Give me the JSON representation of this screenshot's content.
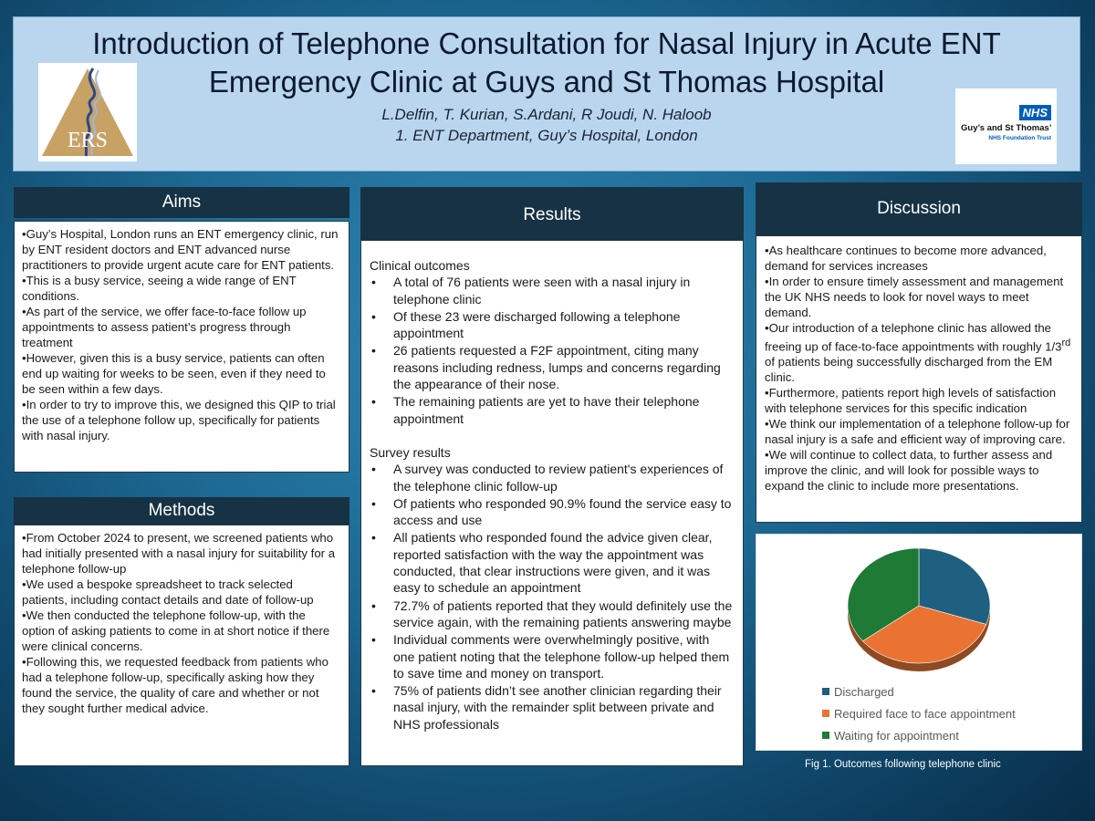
{
  "header": {
    "title_line1": "Introduction of Telephone Consultation for Nasal Injury in Acute ENT",
    "title_line2": "Emergency Clinic at Guys and St Thomas Hospital",
    "authors": "L.Delfin, T. Kurian, S.Ardani, R Joudi, N. Haloob",
    "affiliation": "1. ENT Department, Guy’s Hospital, London",
    "logo_left_text": "ERS",
    "logo_right_badge": "NHS",
    "logo_right_name": "Guy’s and St Thomas’",
    "logo_right_trust": "NHS Foundation Trust"
  },
  "aims": {
    "heading": "Aims",
    "items": [
      "•Guy’s Hospital, London runs an ENT emergency clinic, run by ENT resident doctors and ENT advanced nurse practitioners to provide urgent acute care for ENT patients.",
      "•This is a busy service, seeing a wide range of ENT conditions.",
      "•As part of the service, we offer face-to-face follow up appointments to assess patient’s progress through treatment",
      "•However, given this is a busy service, patients can often end up waiting for weeks to be seen, even if they need to be seen within a few days.",
      "•In order to try to improve this, we designed this QIP to trial the use of a telephone follow up, specifically for patients with nasal injury."
    ]
  },
  "methods": {
    "heading": "Methods",
    "items": [
      "•From October 2024 to present, we screened patients who had initially presented with a nasal injury for suitability for a telephone follow-up",
      "•We used a bespoke spreadsheet to track selected patients, including contact details and date of follow-up",
      "•We then conducted the telephone follow-up, with the option of asking patients to come in at short notice if there were clinical concerns.",
      "•Following this, we requested feedback from patients who had a telephone follow-up, specifically asking how they found the service, the quality of care and whether or not they sought further medical advice."
    ]
  },
  "results": {
    "heading": "Results",
    "clinical_heading": "Clinical outcomes",
    "clinical_items": [
      "A total of 76 patients were seen with a nasal injury in telephone clinic",
      "Of these 23 were discharged following a telephone appointment",
      "26 patients requested a F2F appointment, citing many reasons including redness, lumps and concerns regarding the appearance of their nose.",
      "The remaining patients are yet to have their telephone appointment"
    ],
    "survey_heading": "Survey results",
    "survey_items": [
      "A survey was conducted to review patient's experiences of the telephone clinic follow-up",
      "Of patients who responded 90.9% found the service easy to access and use",
      "All patients who responded found the advice given clear, reported satisfaction with the way the appointment was conducted, that clear instructions were given, and it was easy to schedule an appointment",
      "72.7% of patients reported that they would definitely use the service again, with the remaining patients answering maybe",
      "Individual comments were overwhelmingly positive, with one patient noting that the telephone follow-up helped them to save time and money on transport.",
      "75% of patients didn’t see another clinician regarding their nasal injury, with the remainder split between private and NHS professionals"
    ]
  },
  "discussion": {
    "heading": "Discussion",
    "items": [
      "•As healthcare continues to become more advanced, demand for services increases",
      "•In order to ensure timely assessment and management the UK NHS needs to look for novel ways to meet demand.",
      "•Our introduction of a telephone clinic has allowed the freeing up of face-to-face appointments with roughly 1/3rd of patients being successfully discharged from the EM clinic.",
      "•Furthermore, patients report high levels of satisfaction with telephone services for this specific indication",
      "•We think our implementation of a telephone follow-up for nasal injury is a safe and efficient way of improving care.",
      "•We will continue to collect data, to further assess and improve the clinic, and will look for possible ways to expand the clinic to include more presentations."
    ]
  },
  "chart_data": {
    "type": "pie",
    "categories": [
      "Discharged",
      "Required face to face appointment",
      "Waiting for appointment"
    ],
    "values": [
      23,
      26,
      27
    ],
    "colors": [
      "#1f5f7f",
      "#ea7232",
      "#1e7a34"
    ],
    "title": "",
    "legend_position": "bottom-left"
  },
  "caption": "Fig 1. Outcomes following telephone clinic"
}
